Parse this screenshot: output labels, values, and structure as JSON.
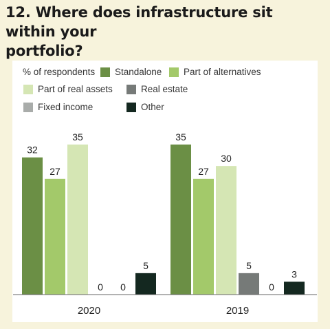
{
  "title_line1": "12. Where does infrastructure sit within your",
  "title_line2": "portfolio?",
  "chart_data": {
    "type": "bar",
    "title": "12. Where does infrastructure sit within your portfolio?",
    "ylabel": "% of respondents",
    "categories": [
      "2020",
      "2019"
    ],
    "series": [
      {
        "name": "Standalone",
        "color": "#6b8f45",
        "values": [
          32,
          35
        ]
      },
      {
        "name": "Part of alternatives",
        "color": "#a3c96a",
        "values": [
          27,
          27
        ]
      },
      {
        "name": "Part of real assets",
        "color": "#d5e6b4",
        "values": [
          35,
          30
        ]
      },
      {
        "name": "Real estate",
        "color": "#767a78",
        "values": [
          0,
          5
        ]
      },
      {
        "name": "Fixed income",
        "color": "#a9acaa",
        "values": [
          0,
          0
        ]
      },
      {
        "name": "Other",
        "color": "#142820",
        "values": [
          5,
          3
        ]
      }
    ],
    "ylim": [
      0,
      40
    ],
    "legend_position": "top",
    "grid": false
  }
}
